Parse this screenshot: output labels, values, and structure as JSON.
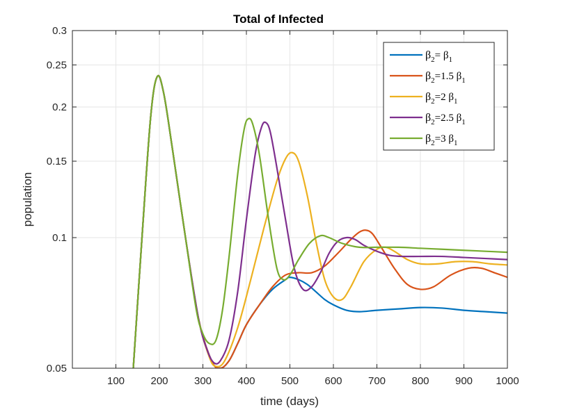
{
  "chart_data": {
    "type": "line",
    "title": "Total of Infected",
    "xlabel": "time (days)",
    "ylabel": "population",
    "xlim": [
      0,
      1000
    ],
    "ylim": [
      0.05,
      0.3
    ],
    "yscale": "log",
    "grid": true,
    "legend_position": "top-right",
    "xticks": [
      100,
      200,
      300,
      400,
      500,
      600,
      700,
      800,
      900,
      1000
    ],
    "xtick_labels": [
      "100",
      "200",
      "300",
      "400",
      "500",
      "600",
      "700",
      "800",
      "900",
      "1000"
    ],
    "yticks": [
      0.05,
      0.1,
      0.15,
      0.2,
      0.25,
      0.3
    ],
    "ytick_labels": [
      "0.05",
      "0.1",
      "0.15",
      "0.2",
      "0.25",
      "0.3"
    ],
    "series": [
      {
        "name": "β2= β1",
        "legend": {
          "base": "β",
          "sub": "2",
          "mid": "= β",
          "sub2": "1"
        },
        "color": "#0072BD",
        "points": [
          [
            140,
            0.05
          ],
          [
            160,
            0.1
          ],
          [
            180,
            0.19
          ],
          [
            195,
            0.235
          ],
          [
            210,
            0.215
          ],
          [
            230,
            0.16
          ],
          [
            260,
            0.1
          ],
          [
            290,
            0.065
          ],
          [
            320,
            0.052
          ],
          [
            340,
            0.05
          ],
          [
            360,
            0.052
          ],
          [
            380,
            0.057
          ],
          [
            400,
            0.063
          ],
          [
            430,
            0.07
          ],
          [
            460,
            0.076
          ],
          [
            490,
            0.08
          ],
          [
            500,
            0.081
          ],
          [
            520,
            0.08
          ],
          [
            540,
            0.078
          ],
          [
            560,
            0.075
          ],
          [
            580,
            0.072
          ],
          [
            600,
            0.07
          ],
          [
            630,
            0.068
          ],
          [
            660,
            0.0675
          ],
          [
            700,
            0.068
          ],
          [
            750,
            0.0685
          ],
          [
            800,
            0.069
          ],
          [
            850,
            0.0688
          ],
          [
            900,
            0.068
          ],
          [
            950,
            0.0675
          ],
          [
            1000,
            0.067
          ]
        ]
      },
      {
        "name": "β2=1.5 β1",
        "legend": {
          "base": "β",
          "sub": "2",
          "mid": "=1.5  β",
          "sub2": "1"
        },
        "color": "#D95319",
        "points": [
          [
            140,
            0.05
          ],
          [
            160,
            0.1
          ],
          [
            180,
            0.19
          ],
          [
            195,
            0.235
          ],
          [
            210,
            0.215
          ],
          [
            230,
            0.16
          ],
          [
            260,
            0.1
          ],
          [
            290,
            0.065
          ],
          [
            320,
            0.052
          ],
          [
            340,
            0.05
          ],
          [
            360,
            0.052
          ],
          [
            380,
            0.057
          ],
          [
            400,
            0.063
          ],
          [
            430,
            0.07
          ],
          [
            460,
            0.077
          ],
          [
            490,
            0.082
          ],
          [
            520,
            0.083
          ],
          [
            550,
            0.083
          ],
          [
            580,
            0.086
          ],
          [
            610,
            0.092
          ],
          [
            640,
            0.099
          ],
          [
            660,
            0.103
          ],
          [
            675,
            0.104
          ],
          [
            690,
            0.102
          ],
          [
            710,
            0.095
          ],
          [
            740,
            0.085
          ],
          [
            770,
            0.078
          ],
          [
            800,
            0.076
          ],
          [
            830,
            0.077
          ],
          [
            870,
            0.082
          ],
          [
            910,
            0.085
          ],
          [
            940,
            0.085
          ],
          [
            970,
            0.083
          ],
          [
            1000,
            0.081
          ]
        ]
      },
      {
        "name": "β2=2 β1",
        "legend": {
          "base": "β",
          "sub": "2",
          "mid": "=2  β",
          "sub2": "1"
        },
        "color": "#EDB120",
        "points": [
          [
            140,
            0.05
          ],
          [
            160,
            0.1
          ],
          [
            180,
            0.19
          ],
          [
            195,
            0.235
          ],
          [
            210,
            0.215
          ],
          [
            230,
            0.16
          ],
          [
            260,
            0.1
          ],
          [
            290,
            0.065
          ],
          [
            315,
            0.053
          ],
          [
            330,
            0.0505
          ],
          [
            350,
            0.052
          ],
          [
            380,
            0.062
          ],
          [
            410,
            0.08
          ],
          [
            440,
            0.105
          ],
          [
            470,
            0.135
          ],
          [
            490,
            0.152
          ],
          [
            505,
            0.157
          ],
          [
            520,
            0.15
          ],
          [
            540,
            0.125
          ],
          [
            560,
            0.098
          ],
          [
            580,
            0.08
          ],
          [
            600,
            0.073
          ],
          [
            620,
            0.072
          ],
          [
            640,
            0.077
          ],
          [
            670,
            0.088
          ],
          [
            700,
            0.094
          ],
          [
            720,
            0.095
          ],
          [
            740,
            0.093
          ],
          [
            770,
            0.089
          ],
          [
            800,
            0.087
          ],
          [
            840,
            0.087
          ],
          [
            880,
            0.088
          ],
          [
            920,
            0.088
          ],
          [
            960,
            0.087
          ],
          [
            1000,
            0.0865
          ]
        ]
      },
      {
        "name": "β2=2.5 β1",
        "legend": {
          "base": "β",
          "sub": "2",
          "mid": "=2.5  β",
          "sub2": "1"
        },
        "color": "#7E2F8E",
        "points": [
          [
            140,
            0.05
          ],
          [
            160,
            0.1
          ],
          [
            180,
            0.19
          ],
          [
            195,
            0.235
          ],
          [
            210,
            0.215
          ],
          [
            230,
            0.16
          ],
          [
            260,
            0.1
          ],
          [
            290,
            0.065
          ],
          [
            310,
            0.055
          ],
          [
            325,
            0.0515
          ],
          [
            340,
            0.052
          ],
          [
            360,
            0.058
          ],
          [
            380,
            0.075
          ],
          [
            400,
            0.11
          ],
          [
            420,
            0.155
          ],
          [
            435,
            0.18
          ],
          [
            445,
            0.184
          ],
          [
            455,
            0.175
          ],
          [
            470,
            0.145
          ],
          [
            490,
            0.11
          ],
          [
            510,
            0.085
          ],
          [
            530,
            0.076
          ],
          [
            550,
            0.077
          ],
          [
            570,
            0.083
          ],
          [
            590,
            0.092
          ],
          [
            610,
            0.098
          ],
          [
            630,
            0.1
          ],
          [
            650,
            0.099
          ],
          [
            670,
            0.096
          ],
          [
            700,
            0.093
          ],
          [
            730,
            0.091
          ],
          [
            760,
            0.0905
          ],
          [
            800,
            0.0905
          ],
          [
            850,
            0.0905
          ],
          [
            900,
            0.09
          ],
          [
            950,
            0.0895
          ],
          [
            1000,
            0.089
          ]
        ]
      },
      {
        "name": "β2=3 β1",
        "legend": {
          "base": "β",
          "sub": "2",
          "mid": "=3  β",
          "sub2": "1"
        },
        "color": "#77AC30",
        "points": [
          [
            140,
            0.05
          ],
          [
            160,
            0.1
          ],
          [
            180,
            0.19
          ],
          [
            195,
            0.235
          ],
          [
            210,
            0.215
          ],
          [
            230,
            0.16
          ],
          [
            260,
            0.1
          ],
          [
            285,
            0.068
          ],
          [
            300,
            0.06
          ],
          [
            315,
            0.057
          ],
          [
            330,
            0.058
          ],
          [
            345,
            0.068
          ],
          [
            360,
            0.09
          ],
          [
            380,
            0.14
          ],
          [
            395,
            0.178
          ],
          [
            405,
            0.188
          ],
          [
            415,
            0.182
          ],
          [
            430,
            0.155
          ],
          [
            450,
            0.112
          ],
          [
            470,
            0.085
          ],
          [
            485,
            0.08
          ],
          [
            500,
            0.082
          ],
          [
            520,
            0.089
          ],
          [
            545,
            0.097
          ],
          [
            570,
            0.101
          ],
          [
            590,
            0.1
          ],
          [
            620,
            0.097
          ],
          [
            660,
            0.095
          ],
          [
            700,
            0.095
          ],
          [
            750,
            0.095
          ],
          [
            800,
            0.0945
          ],
          [
            850,
            0.094
          ],
          [
            900,
            0.0935
          ],
          [
            950,
            0.093
          ],
          [
            1000,
            0.0925
          ]
        ]
      }
    ]
  }
}
